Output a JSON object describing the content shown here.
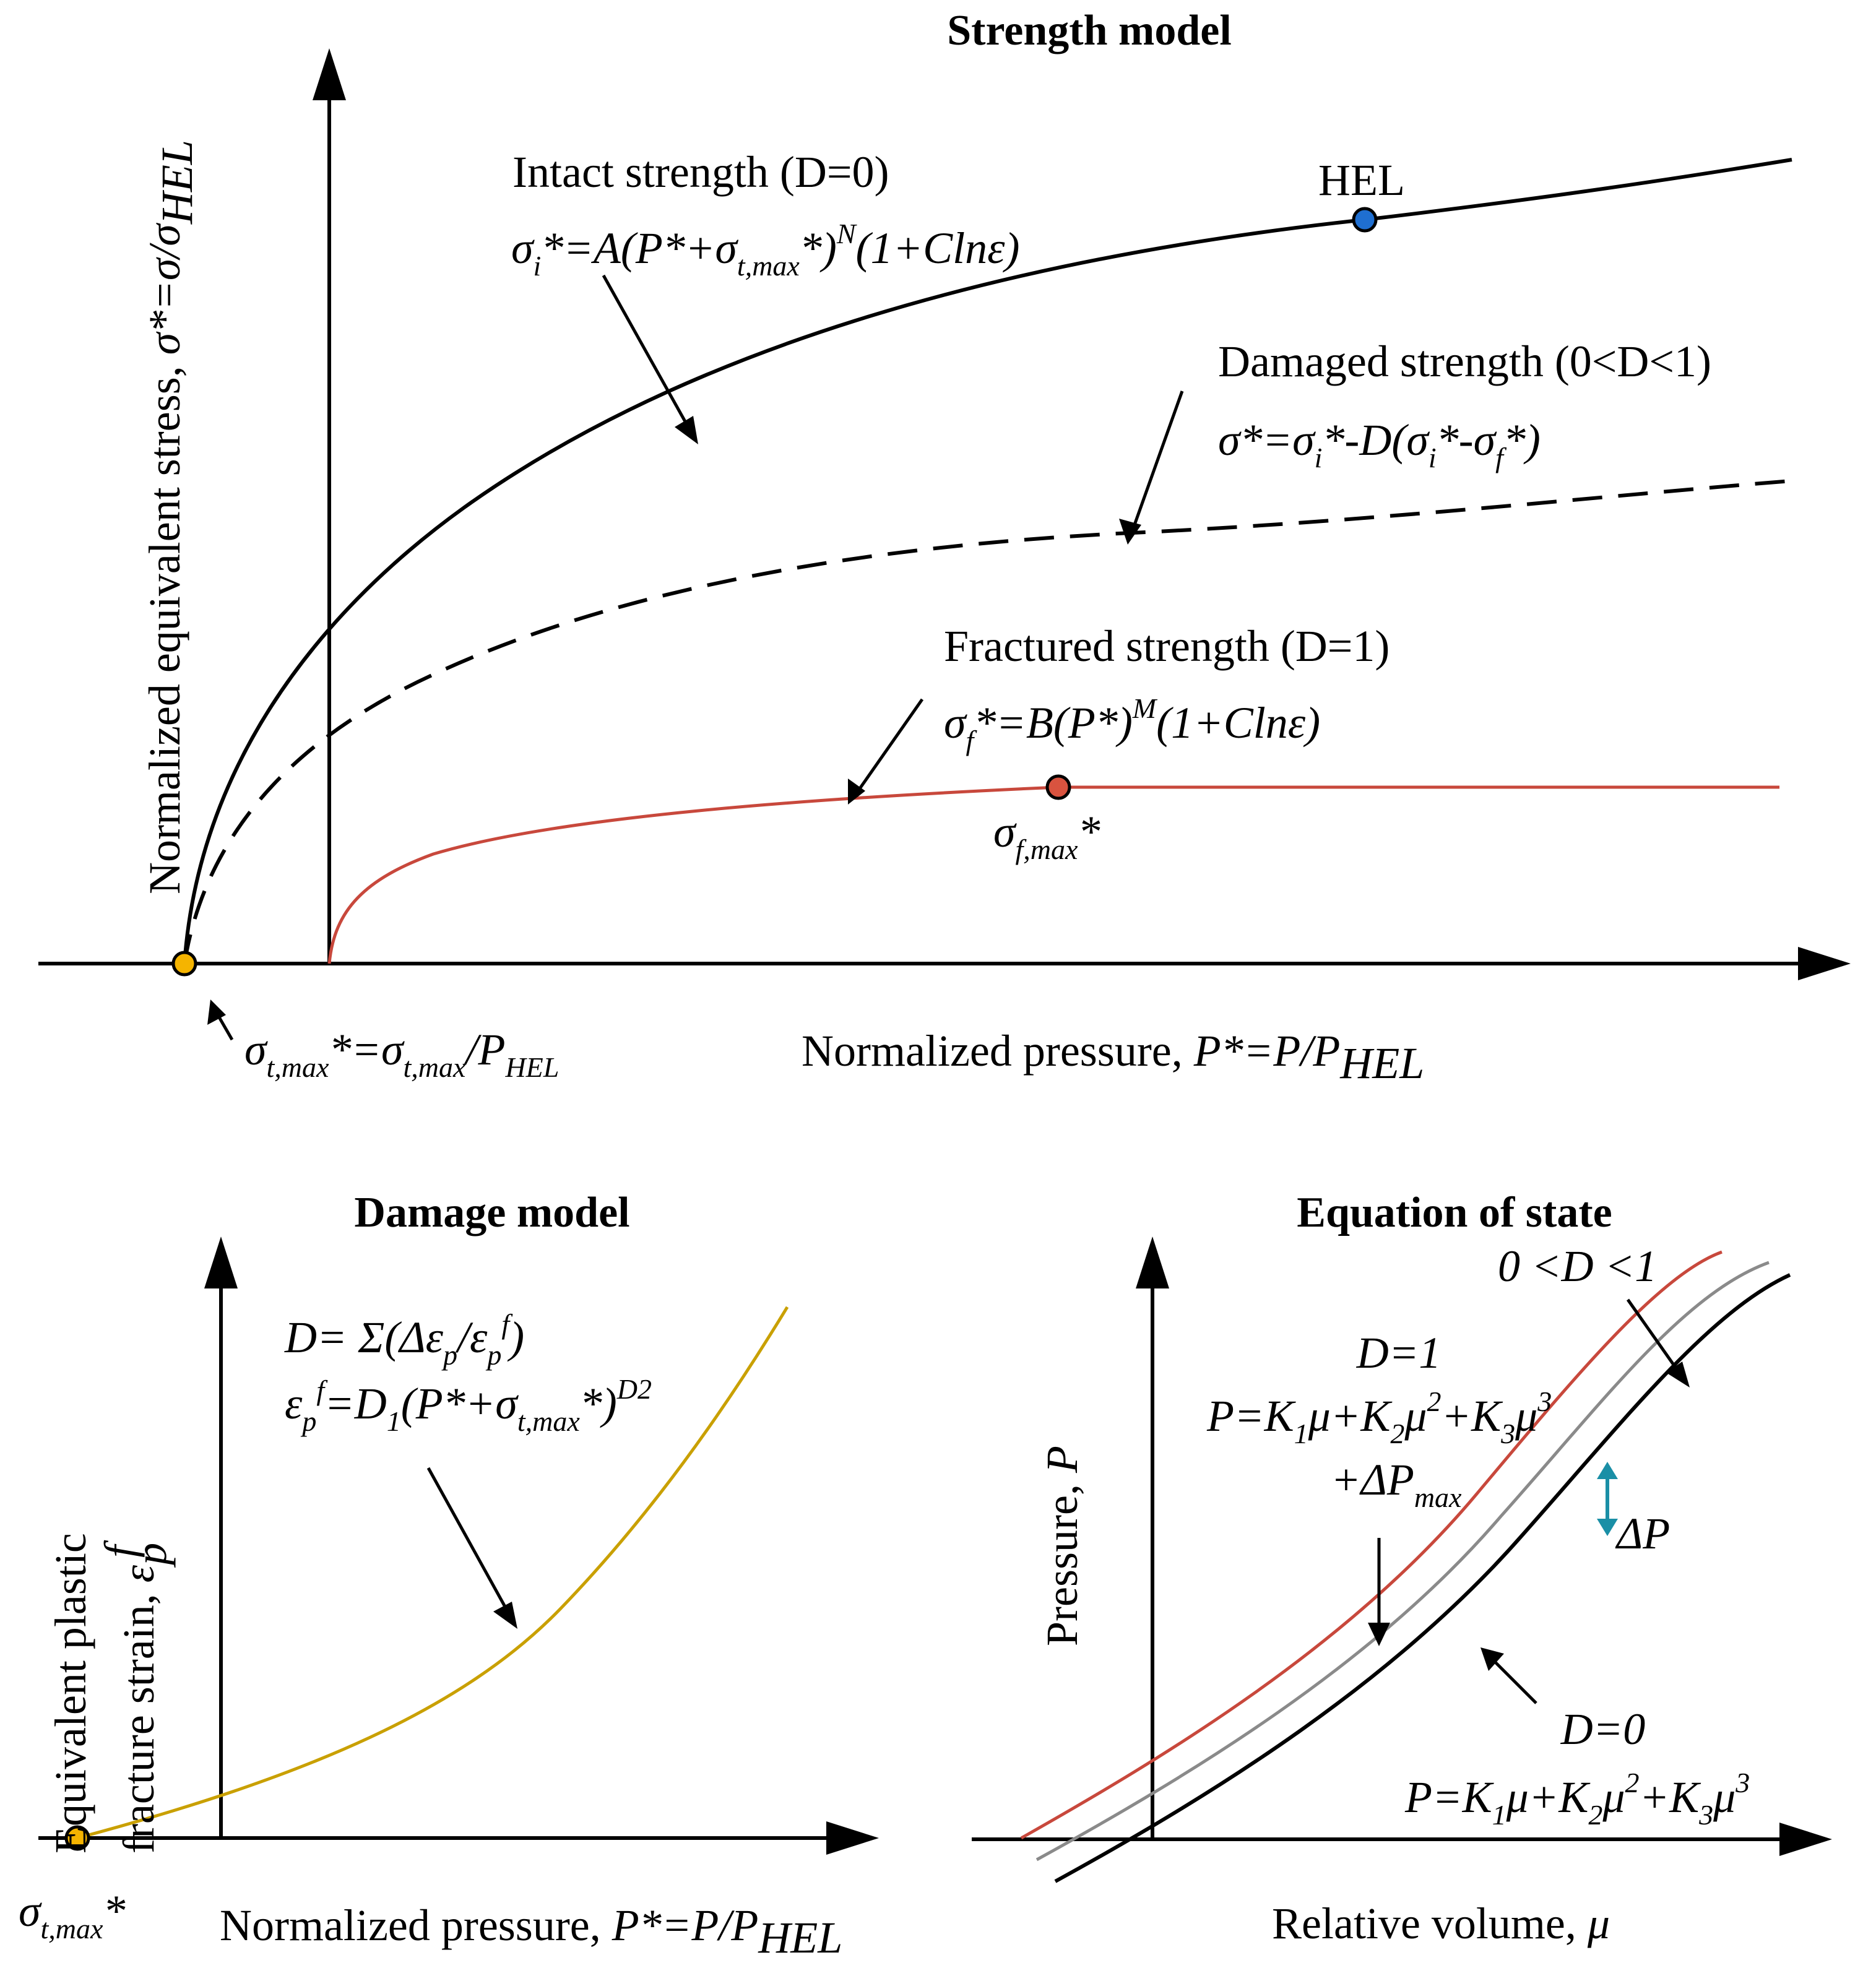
{
  "colors": {
    "black": "#000000",
    "red": "#c8483c",
    "gold": "#c9a000",
    "gray": "#8a8a8a",
    "teal": "#1a8fa6",
    "blue": "#1f6fd1",
    "yellow_dot": "#f5b400",
    "red_dot": "#d9533f"
  },
  "strength": {
    "title": "Strength model",
    "y_label_text": "Normalized equivalent stress, ",
    "y_label_eq": "σ*=σ/σ",
    "y_label_sub": "HEL",
    "x_label_text": "Normalized pressure, ",
    "x_label_eq": "P*=P/P",
    "x_label_sub": "HEL",
    "intact_label": "Intact strength (D=0)",
    "intact_eq": {
      "a": "σ",
      "b": "i",
      "c": "*=A(P*+σ",
      "d": "t,max",
      "e": "*)",
      "f": "N",
      "g": "(1+Clnε)"
    },
    "hel_label": "HEL",
    "damaged_label": "Damaged strength (0<D<1)",
    "damaged_eq": {
      "a": "σ*=σ",
      "b": "i",
      "c": "*-D(σ",
      "d": "i",
      "e": "*-σ",
      "f": "f",
      "g": "*)"
    },
    "fractured_label": "Fractured strength (D=1)",
    "fractured_eq": {
      "a": "σ",
      "b": "f",
      "c": "*=B(P*)",
      "d": "M",
      "e": "(1+Clnε)"
    },
    "sigma_fmax": {
      "a": "σ",
      "b": "f,max",
      "c": "*"
    },
    "sigma_tmax_eq": {
      "a": "σ",
      "b": "t,max",
      "c": "*=σ",
      "d": "t,max",
      "e": "/P",
      "f": "HEL"
    }
  },
  "damage": {
    "title": "Damage model",
    "y_label_line1": "Equivalent plastic",
    "y_label_line2": "fracture strain, ",
    "y_label_eq": "ε",
    "y_label_sub": "p",
    "y_label_sup": "f",
    "eq1": {
      "a": "D= Σ(Δε",
      "b": "p",
      "c": "/ε",
      "d": "p",
      "e": "f",
      "f": ")"
    },
    "eq2": {
      "a": "ε",
      "b": "p",
      "c": "f",
      "d": "=D",
      "e": "1",
      "f": "(P*+σ",
      "g": "t,max",
      "h": "*)",
      "i": "D2"
    },
    "x_label_text": "Normalized pressure, ",
    "x_label_eq": "P*=P/P",
    "x_label_sub": "HEL",
    "sigma_tmax": {
      "a": "σ",
      "b": "t,max",
      "c": "*"
    }
  },
  "eos": {
    "title": "Equation of state",
    "y_label_text": "Pressure, ",
    "y_label_eq": "P",
    "x_label_text": "Relative volume, ",
    "x_label_eq": "μ",
    "partial_label": "0 <D <1",
    "d1_label": "D=1",
    "d1_eq1": {
      "a": "P=K",
      "b": "1",
      "c": "μ+K",
      "d": "2",
      "e": "μ",
      "f": "2",
      "g": "+K",
      "h": "3",
      "i": "μ",
      "j": "3"
    },
    "d1_eq2": {
      "a": "+ΔP",
      "b": "max"
    },
    "delta_p": "ΔP",
    "d0_label": "D=0",
    "d0_eq": {
      "a": "P=K",
      "b": "1",
      "c": "μ+K",
      "d": "2",
      "e": "μ",
      "f": "2",
      "g": "+K",
      "h": "3",
      "i": "μ",
      "j": "3"
    }
  }
}
